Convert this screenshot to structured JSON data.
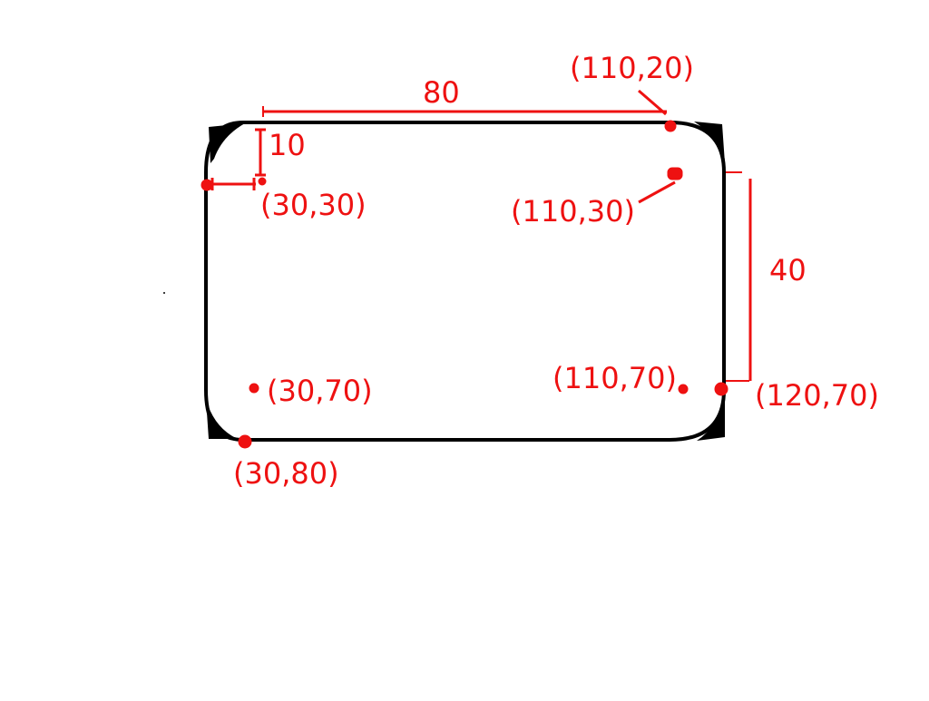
{
  "diagram": {
    "colors": {
      "outline": "#000000",
      "annotation": "#ee1111"
    },
    "points": [
      {
        "id": "p-110-20",
        "label": "(110,20)"
      },
      {
        "id": "p-30-30",
        "label": "(30,30)"
      },
      {
        "id": "p-110-30",
        "label": "(110,30)"
      },
      {
        "id": "p-30-70",
        "label": "(30,70)"
      },
      {
        "id": "p-110-70",
        "label": "(110,70)"
      },
      {
        "id": "p-120-70",
        "label": "(120,70)"
      },
      {
        "id": "p-30-80",
        "label": "(30,80)"
      }
    ],
    "dimensions": {
      "width_label": "80",
      "height_label": "40",
      "radius_label": "10"
    }
  }
}
